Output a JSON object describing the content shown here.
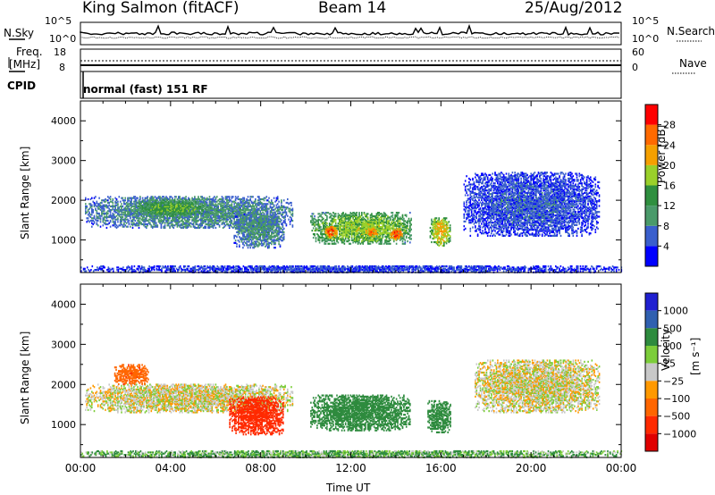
{
  "header": {
    "station": "King Salmon (fitACF)",
    "beam": "Beam 14",
    "date": "25/Aug/2012"
  },
  "top_panels": {
    "nsky_label": "N.Sky",
    "nsearch_label": "N.Search",
    "noise_ticks": [
      "10^5",
      "10^0"
    ],
    "freq_label_line1": "Freq.",
    "freq_label_line2": "[MHz]",
    "freq_ticks": [
      "18",
      "8"
    ],
    "nave_label": "Nave",
    "nave_ticks": [
      "60",
      "0"
    ],
    "cpid_label": "CPID",
    "cpid_text": "normal (fast) 151 RF"
  },
  "chart_data": [
    {
      "type": "heatmap",
      "title": "",
      "xlabel": "Time UT",
      "ylabel": "Slant Range [km]",
      "x_ticks": [
        "00:00",
        "04:00",
        "08:00",
        "12:00",
        "16:00",
        "20:00",
        "00:00"
      ],
      "x_range_hours": [
        0,
        24
      ],
      "y_ticks": [
        1000,
        2000,
        3000,
        4000
      ],
      "y_range_km": [
        180,
        4500
      ],
      "colorbar": {
        "label": "Power [dB]",
        "ticks": [
          28,
          24,
          20,
          16,
          12,
          8,
          4
        ],
        "range": [
          0,
          32
        ],
        "colors": [
          "#0000ff",
          "#3a5fcd",
          "#4a9a6a",
          "#2f8f3f",
          "#9ad02a",
          "#f5a000",
          "#ff6a00",
          "#ff0000"
        ]
      },
      "echo_regions": [
        {
          "t_start": 0.2,
          "t_end": 9.4,
          "r_start": 1300,
          "r_end": 2100,
          "power_db": 10
        },
        {
          "t_start": 2.5,
          "t_end": 5.5,
          "r_start": 1600,
          "r_end": 2000,
          "power_db": 16
        },
        {
          "t_start": 6.8,
          "t_end": 9.0,
          "r_start": 800,
          "r_end": 1700,
          "power_db": 10
        },
        {
          "t_start": 10.2,
          "t_end": 14.7,
          "r_start": 900,
          "r_end": 1700,
          "power_db": 18
        },
        {
          "t_start": 10.8,
          "t_end": 11.4,
          "r_start": 1050,
          "r_end": 1350,
          "power_db": 28
        },
        {
          "t_start": 12.6,
          "t_end": 13.2,
          "r_start": 1050,
          "r_end": 1350,
          "power_db": 26
        },
        {
          "t_start": 13.7,
          "t_end": 14.3,
          "r_start": 1000,
          "r_end": 1300,
          "power_db": 28
        },
        {
          "t_start": 15.5,
          "t_end": 16.4,
          "r_start": 850,
          "r_end": 1550,
          "power_db": 22
        },
        {
          "t_start": 17.0,
          "t_end": 23.0,
          "r_start": 1100,
          "r_end": 2700,
          "power_db": 6
        },
        {
          "t_start": 0.0,
          "t_end": 24.0,
          "r_start": 180,
          "r_end": 350,
          "power_db": 5
        }
      ]
    },
    {
      "type": "heatmap",
      "title": "",
      "xlabel": "Time UT",
      "ylabel": "Slant Range [km]",
      "x_ticks": [
        "00:00",
        "04:00",
        "08:00",
        "12:00",
        "16:00",
        "20:00",
        "00:00"
      ],
      "x_range_hours": [
        0,
        24
      ],
      "y_ticks": [
        1000,
        2000,
        3000,
        4000
      ],
      "y_range_km": [
        180,
        4500
      ],
      "colorbar": {
        "label_main": "Velocity",
        "label_units": "[m s⁻¹]",
        "ticks": [
          "1000",
          "500",
          "100",
          "25",
          "−25",
          "−100",
          "−500",
          "−1000"
        ],
        "colors": [
          "#2020d0",
          "#3060b0",
          "#2e8b3e",
          "#7ccd3a",
          "#c8c8c8",
          "#ff9900",
          "#ff6600",
          "#ff2a00",
          "#e00000"
        ]
      },
      "echo_regions": [
        {
          "t_start": 0.2,
          "t_end": 9.4,
          "r_start": 1300,
          "r_end": 2000,
          "velocity": 0
        },
        {
          "t_start": 1.5,
          "t_end": 3.0,
          "r_start": 2000,
          "r_end": 2500,
          "velocity": -200
        },
        {
          "t_start": 6.6,
          "t_end": 9.0,
          "r_start": 750,
          "r_end": 1700,
          "velocity": -600
        },
        {
          "t_start": 10.2,
          "t_end": 14.6,
          "r_start": 850,
          "r_end": 1750,
          "velocity": 150
        },
        {
          "t_start": 15.4,
          "t_end": 16.4,
          "r_start": 800,
          "r_end": 1600,
          "velocity": 150
        },
        {
          "t_start": 17.5,
          "t_end": 23.0,
          "r_start": 1300,
          "r_end": 2600,
          "velocity": 0
        },
        {
          "t_start": 0.0,
          "t_end": 24.0,
          "r_start": 180,
          "r_end": 350,
          "velocity": 60
        }
      ]
    }
  ]
}
